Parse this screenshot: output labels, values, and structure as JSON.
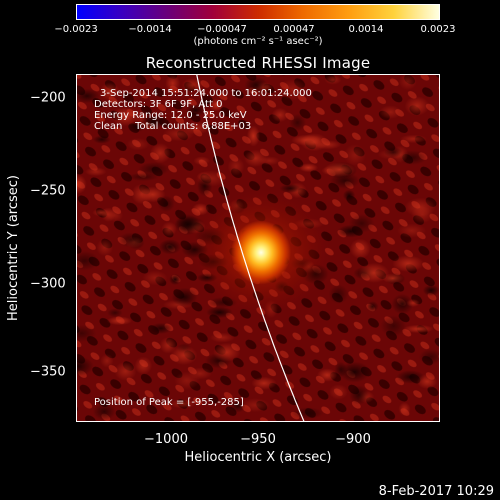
{
  "colorbar": {
    "ticks": [
      "−0.0023",
      "−0.0014",
      "−0.00047",
      "0.00047",
      "0.0014",
      "0.0023"
    ],
    "units": "(photons cm⁻² s⁻¹ asec⁻²)",
    "gradient": [
      "#0000ff",
      "#3a00c0",
      "#6a007a",
      "#a0003a",
      "#cc2a00",
      "#ee6a00",
      "#ff9d10",
      "#ffd23c",
      "#ffffe0"
    ]
  },
  "title": "Reconstructed RHESSI Image",
  "info": {
    "time_range": "3-Sep-2014 15:51:24.000 to 16:01:24.000",
    "detectors": "Detectors: 3F 6F 9F, Att 0",
    "energy": "Energy Range: 12.0 - 25.0 keV",
    "clean": "Clean    Total counts: 6.88E+03",
    "peak": "Position of Peak = [-955,-285]"
  },
  "axes": {
    "xlabel": "Heliocentric X (arcsec)",
    "ylabel": "Heliocentric Y (arcsec)",
    "xticks": [
      "−1000",
      "−950",
      "−900"
    ],
    "yticks": [
      "−200",
      "−250",
      "−300",
      "−350"
    ],
    "xticks_values": [
      -1000,
      -950,
      -900
    ],
    "yticks_values": [
      -200,
      -250,
      -300,
      -350
    ],
    "xlim": [
      -1047,
      -866
    ],
    "ylim": [
      -372,
      -189
    ]
  },
  "image": {
    "peak": [
      -955,
      -285
    ],
    "background_color": "#6b0606"
  },
  "timestamp": "8-Feb-2017 10:29"
}
